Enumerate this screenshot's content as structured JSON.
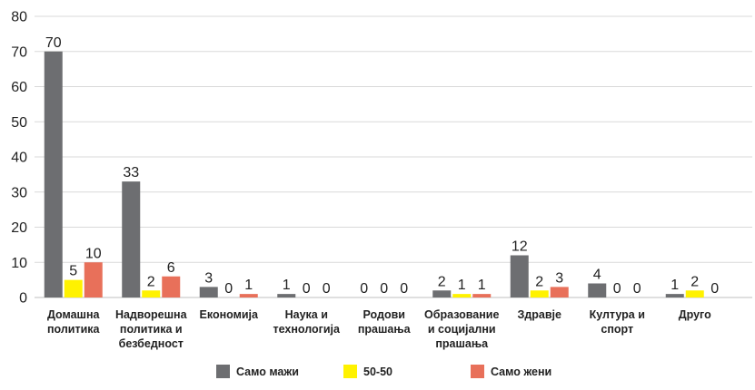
{
  "chart_data": {
    "type": "bar",
    "categories": [
      [
        "Домашна",
        "политика"
      ],
      [
        "Надворешна",
        "политика и",
        "безбедност"
      ],
      [
        "Економија"
      ],
      [
        "Наука и",
        "технологија"
      ],
      [
        "Родови",
        "прашања"
      ],
      [
        "Образование",
        "и социјални",
        "прашања"
      ],
      [
        "Здравје"
      ],
      [
        "Култура и",
        "спорт"
      ],
      [
        "Друго"
      ]
    ],
    "series": [
      {
        "name": "Само мажи",
        "color": "#6d6e71",
        "values": [
          70,
          33,
          3,
          1,
          0,
          2,
          12,
          4,
          1
        ]
      },
      {
        "name": "50-50",
        "color": "#fff200",
        "values": [
          5,
          2,
          0,
          0,
          0,
          1,
          2,
          0,
          2
        ]
      },
      {
        "name": "Само жени",
        "color": "#e8705a",
        "values": [
          10,
          6,
          1,
          0,
          0,
          1,
          3,
          0,
          0
        ]
      }
    ],
    "ylim": [
      0,
      80
    ],
    "yticks": [
      0,
      10,
      20,
      30,
      40,
      50,
      60,
      70,
      80
    ],
    "grid": true,
    "legend_position": "bottom"
  }
}
